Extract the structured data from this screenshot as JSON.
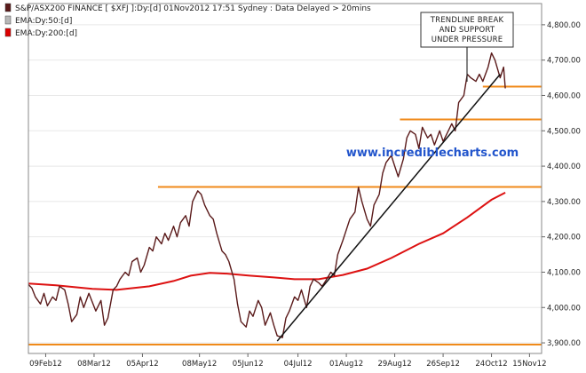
{
  "legend": [
    {
      "label": "S&P/ASX200 FINANCE [ $XFJ ]:Dy:[d]   01Nov2012 17:51 Sydney : Data Delayed > 20mins",
      "color": "#5a1a1a"
    },
    {
      "label": "EMA:Dy:50:[d]",
      "color": "#b8b8b8"
    },
    {
      "label": "EMA:Dy:200:[d]",
      "color": "#dd0000"
    }
  ],
  "watermark": "www.incrediblecharts.com",
  "annotation": [
    "TRENDLINE BREAK",
    "AND SUPPORT",
    "UNDER PRESSURE"
  ],
  "colors": {
    "price": "#5a1a1a",
    "ema200": "#dd1111",
    "support": "#f08a1a",
    "trendline": "#111111",
    "grid": "#e8e8e8"
  },
  "chart_data": {
    "type": "line",
    "title": "S&P/ASX200 FINANCE [ $XFJ ]",
    "xlim": [
      "2012-01-30",
      "2012-11-22"
    ],
    "ylim": [
      3870,
      4860
    ],
    "grid": false,
    "legend_position": "top-left",
    "x_ticks": [
      "09Feb12",
      "08Mar12",
      "05Apr12",
      "08May12",
      "05Jun12",
      "04Jul12",
      "01Aug12",
      "29Aug12",
      "26Sep12",
      "24Oct12",
      "15Nov12"
    ],
    "y_ticks": [
      3900,
      4000,
      4100,
      4200,
      4300,
      4400,
      4500,
      4600,
      4700,
      4800
    ],
    "y_tick_labels": [
      "3,900.00",
      "4,000.00",
      "4,100.00",
      "4,200.00",
      "4,300.00",
      "4,400.00",
      "4,500.00",
      "4,600.00",
      "4,700.00",
      "4,800.00"
    ],
    "series": [
      {
        "name": "S&P/ASX200 FINANCE [ $XFJ ]",
        "style": "close",
        "points": [
          [
            "2012-01-30",
            4065
          ],
          [
            "2012-02-01",
            4055
          ],
          [
            "2012-02-03",
            4030
          ],
          [
            "2012-02-06",
            4010
          ],
          [
            "2012-02-08",
            4040
          ],
          [
            "2012-02-10",
            4005
          ],
          [
            "2012-02-13",
            4030
          ],
          [
            "2012-02-15",
            4020
          ],
          [
            "2012-02-17",
            4060
          ],
          [
            "2012-02-20",
            4050
          ],
          [
            "2012-02-22",
            4010
          ],
          [
            "2012-02-24",
            3960
          ],
          [
            "2012-02-27",
            3980
          ],
          [
            "2012-02-29",
            4030
          ],
          [
            "2012-03-02",
            4000
          ],
          [
            "2012-03-05",
            4040
          ],
          [
            "2012-03-07",
            4015
          ],
          [
            "2012-03-09",
            3990
          ],
          [
            "2012-03-12",
            4020
          ],
          [
            "2012-03-14",
            3950
          ],
          [
            "2012-03-16",
            3970
          ],
          [
            "2012-03-19",
            4050
          ],
          [
            "2012-03-21",
            4060
          ],
          [
            "2012-03-23",
            4080
          ],
          [
            "2012-03-26",
            4100
          ],
          [
            "2012-03-28",
            4090
          ],
          [
            "2012-03-30",
            4130
          ],
          [
            "2012-04-02",
            4140
          ],
          [
            "2012-04-04",
            4100
          ],
          [
            "2012-04-06",
            4120
          ],
          [
            "2012-04-09",
            4170
          ],
          [
            "2012-04-11",
            4160
          ],
          [
            "2012-04-13",
            4200
          ],
          [
            "2012-04-16",
            4180
          ],
          [
            "2012-04-18",
            4210
          ],
          [
            "2012-04-20",
            4190
          ],
          [
            "2012-04-23",
            4230
          ],
          [
            "2012-04-25",
            4200
          ],
          [
            "2012-04-27",
            4240
          ],
          [
            "2012-04-30",
            4260
          ],
          [
            "2012-05-02",
            4230
          ],
          [
            "2012-05-04",
            4300
          ],
          [
            "2012-05-07",
            4330
          ],
          [
            "2012-05-09",
            4320
          ],
          [
            "2012-05-11",
            4290
          ],
          [
            "2012-05-14",
            4260
          ],
          [
            "2012-05-16",
            4250
          ],
          [
            "2012-05-18",
            4210
          ],
          [
            "2012-05-21",
            4160
          ],
          [
            "2012-05-23",
            4150
          ],
          [
            "2012-05-25",
            4130
          ],
          [
            "2012-05-28",
            4080
          ],
          [
            "2012-05-30",
            4010
          ],
          [
            "2012-06-01",
            3960
          ],
          [
            "2012-06-04",
            3945
          ],
          [
            "2012-06-06",
            3990
          ],
          [
            "2012-06-08",
            3975
          ],
          [
            "2012-06-11",
            4020
          ],
          [
            "2012-06-13",
            4000
          ],
          [
            "2012-06-15",
            3950
          ],
          [
            "2012-06-18",
            3985
          ],
          [
            "2012-06-20",
            3950
          ],
          [
            "2012-06-22",
            3920
          ],
          [
            "2012-06-25",
            3915
          ],
          [
            "2012-06-27",
            3970
          ],
          [
            "2012-06-29",
            3990
          ],
          [
            "2012-07-02",
            4030
          ],
          [
            "2012-07-04",
            4020
          ],
          [
            "2012-07-06",
            4050
          ],
          [
            "2012-07-09",
            4000
          ],
          [
            "2012-07-11",
            4060
          ],
          [
            "2012-07-13",
            4080
          ],
          [
            "2012-07-16",
            4070
          ],
          [
            "2012-07-18",
            4060
          ],
          [
            "2012-07-20",
            4075
          ],
          [
            "2012-07-23",
            4100
          ],
          [
            "2012-07-25",
            4090
          ],
          [
            "2012-07-27",
            4150
          ],
          [
            "2012-07-30",
            4190
          ],
          [
            "2012-08-01",
            4220
          ],
          [
            "2012-08-03",
            4250
          ],
          [
            "2012-08-06",
            4270
          ],
          [
            "2012-08-08",
            4340
          ],
          [
            "2012-08-10",
            4300
          ],
          [
            "2012-08-13",
            4250
          ],
          [
            "2012-08-15",
            4230
          ],
          [
            "2012-08-17",
            4290
          ],
          [
            "2012-08-20",
            4320
          ],
          [
            "2012-08-22",
            4380
          ],
          [
            "2012-08-24",
            4410
          ],
          [
            "2012-08-27",
            4430
          ],
          [
            "2012-08-29",
            4400
          ],
          [
            "2012-08-31",
            4370
          ],
          [
            "2012-09-03",
            4420
          ],
          [
            "2012-09-05",
            4480
          ],
          [
            "2012-09-07",
            4500
          ],
          [
            "2012-09-10",
            4490
          ],
          [
            "2012-09-12",
            4450
          ],
          [
            "2012-09-14",
            4510
          ],
          [
            "2012-09-17",
            4480
          ],
          [
            "2012-09-19",
            4490
          ],
          [
            "2012-09-21",
            4460
          ],
          [
            "2012-09-24",
            4500
          ],
          [
            "2012-09-26",
            4470
          ],
          [
            "2012-09-28",
            4490
          ],
          [
            "2012-10-01",
            4520
          ],
          [
            "2012-10-03",
            4500
          ],
          [
            "2012-10-05",
            4580
          ],
          [
            "2012-10-08",
            4600
          ],
          [
            "2012-10-10",
            4660
          ],
          [
            "2012-10-12",
            4650
          ],
          [
            "2012-10-15",
            4640
          ],
          [
            "2012-10-17",
            4660
          ],
          [
            "2012-10-19",
            4640
          ],
          [
            "2012-10-22",
            4680
          ],
          [
            "2012-10-24",
            4720
          ],
          [
            "2012-10-26",
            4700
          ],
          [
            "2012-10-29",
            4650
          ],
          [
            "2012-10-31",
            4680
          ],
          [
            "2012-11-01",
            4620
          ]
        ]
      },
      {
        "name": "EMA:Dy:200:[d]",
        "points": [
          [
            "2012-01-30",
            4068
          ],
          [
            "2012-02-15",
            4063
          ],
          [
            "2012-03-07",
            4053
          ],
          [
            "2012-03-21",
            4050
          ],
          [
            "2012-04-09",
            4060
          ],
          [
            "2012-04-23",
            4075
          ],
          [
            "2012-05-03",
            4090
          ],
          [
            "2012-05-14",
            4098
          ],
          [
            "2012-05-24",
            4096
          ],
          [
            "2012-06-06",
            4090
          ],
          [
            "2012-06-20",
            4085
          ],
          [
            "2012-07-02",
            4080
          ],
          [
            "2012-07-16",
            4080
          ],
          [
            "2012-07-30",
            4092
          ],
          [
            "2012-08-13",
            4110
          ],
          [
            "2012-08-27",
            4140
          ],
          [
            "2012-09-12",
            4180
          ],
          [
            "2012-09-26",
            4210
          ],
          [
            "2012-10-10",
            4255
          ],
          [
            "2012-10-24",
            4305
          ],
          [
            "2012-11-01",
            4325
          ]
        ]
      }
    ],
    "horizontal_lines": [
      {
        "y": 3895,
        "from": "2012-01-30",
        "to": "2012-11-22"
      },
      {
        "y": 4341,
        "from": "2012-04-14",
        "to": "2012-11-22"
      },
      {
        "y": 4532,
        "from": "2012-09-01",
        "to": "2012-11-22"
      },
      {
        "y": 4625,
        "from": "2012-10-19",
        "to": "2012-11-22"
      }
    ],
    "trendline": {
      "from": [
        "2012-06-22",
        3905
      ],
      "to": [
        "2012-10-29",
        4660
      ]
    },
    "annotations": [
      "TRENDLINE BREAK",
      "AND SUPPORT",
      "UNDER PRESSURE"
    ]
  }
}
